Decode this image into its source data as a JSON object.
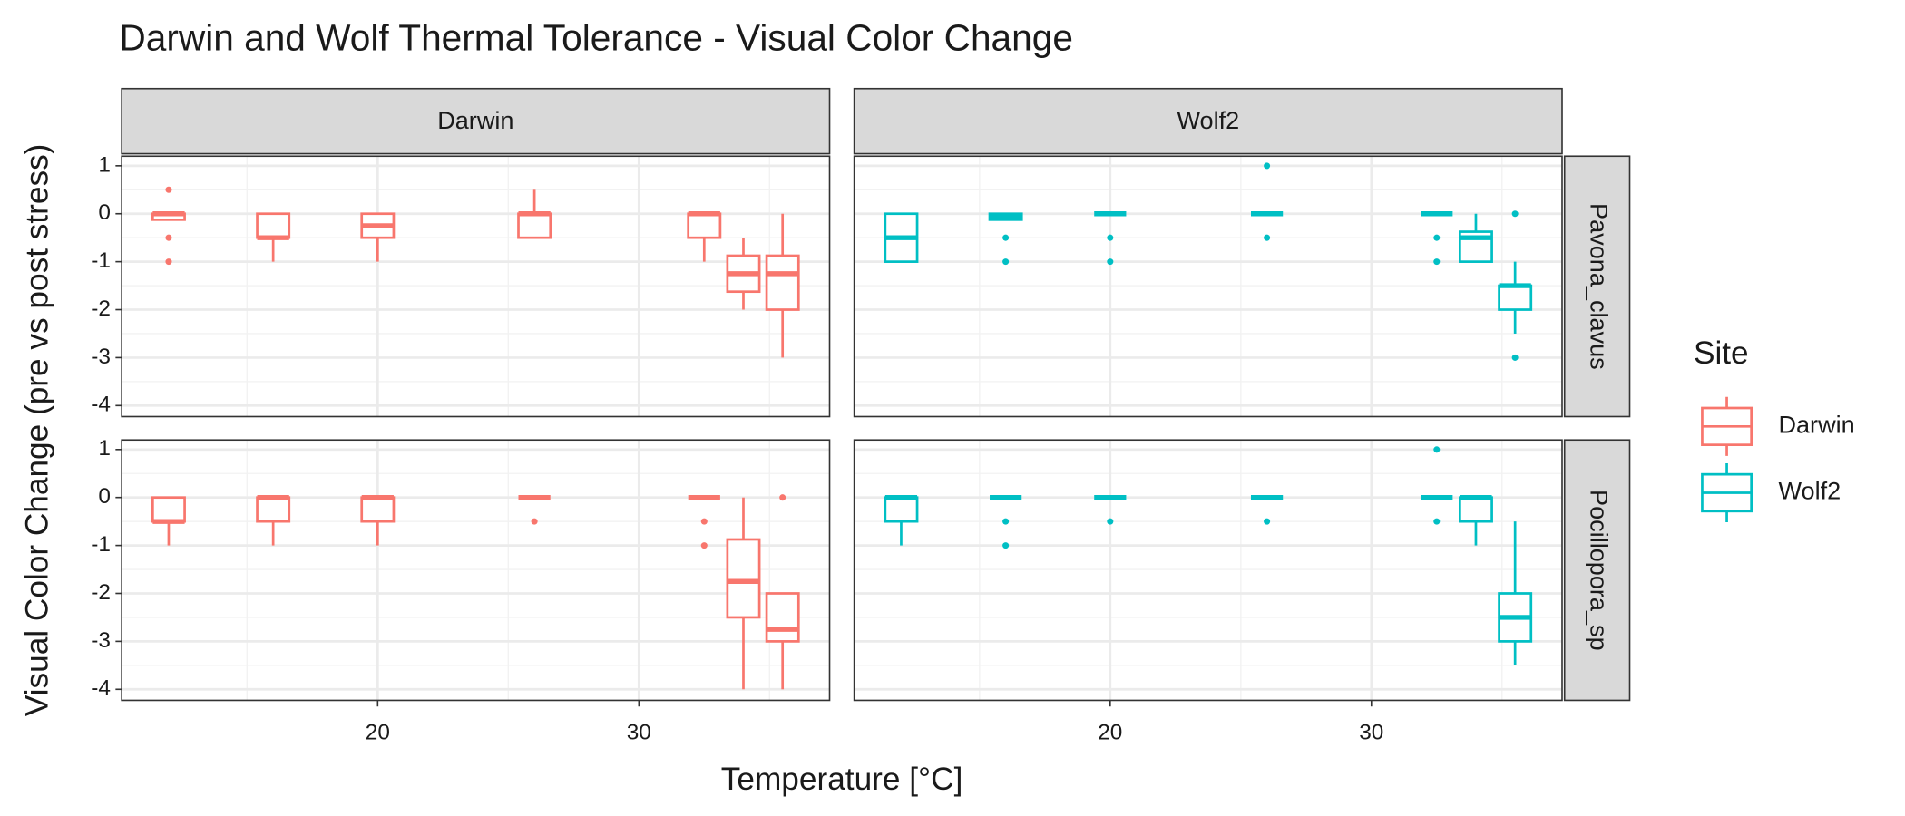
{
  "chart_data": {
    "type": "box",
    "title": "Darwin and Wolf Thermal Tolerance - Visual Color Change",
    "x_label": "Temperature [°C]",
    "y_label": "Visual Color Change (pre vs post stress)",
    "legend_title": "Site",
    "columns": [
      "Darwin",
      "Wolf2"
    ],
    "rows": [
      "Pavona_clavus",
      "Pocillopora_sp"
    ],
    "xlim": [
      10.2,
      37.3
    ],
    "xticks": [
      20,
      30
    ],
    "ylim": [
      -4.23,
      1.2
    ],
    "yticks": [
      -4,
      -3,
      -2,
      -1,
      0,
      1
    ],
    "grid": true,
    "series": [
      {
        "name": "Darwin",
        "color": "#f8766d",
        "panels": [
          [
            {
              "x": 12,
              "whislo": -0.125,
              "q1": -0.125,
              "med": 0,
              "q3": 0,
              "whishi": 0,
              "fliers": [
                0.5,
                -0.5,
                -1
              ]
            },
            {
              "x": 16,
              "whislo": -1,
              "q1": -0.5,
              "med": -0.5,
              "q3": 0,
              "whishi": 0,
              "fliers": []
            },
            {
              "x": 20,
              "whislo": -1,
              "q1": -0.5,
              "med": -0.25,
              "q3": 0,
              "whishi": 0,
              "fliers": []
            },
            {
              "x": 26,
              "whislo": -0.5,
              "q1": -0.5,
              "med": 0,
              "q3": 0,
              "whishi": 0.5,
              "fliers": []
            },
            {
              "x": 32.5,
              "whislo": -1,
              "q1": -0.5,
              "med": 0,
              "q3": 0,
              "whishi": 0,
              "fliers": []
            },
            {
              "x": 34,
              "whislo": -2,
              "q1": -1.625,
              "med": -1.25,
              "q3": -0.875,
              "whishi": -0.5,
              "fliers": []
            },
            {
              "x": 35.5,
              "whislo": -3,
              "q1": -2,
              "med": -1.25,
              "q3": -0.875,
              "whishi": 0,
              "fliers": []
            }
          ],
          [
            {
              "x": 12,
              "whislo": -1,
              "q1": -0.5,
              "med": -0.5,
              "q3": 0,
              "whishi": 0,
              "fliers": []
            },
            {
              "x": 16,
              "whislo": -1,
              "q1": -0.5,
              "med": 0,
              "q3": 0,
              "whishi": 0,
              "fliers": []
            },
            {
              "x": 20,
              "whislo": -1,
              "q1": -0.5,
              "med": 0,
              "q3": 0,
              "whishi": 0,
              "fliers": []
            },
            {
              "x": 26,
              "whislo": 0,
              "q1": 0,
              "med": 0,
              "q3": 0,
              "whishi": 0,
              "fliers": [
                -0.5
              ]
            },
            {
              "x": 32.5,
              "whislo": 0,
              "q1": 0,
              "med": 0,
              "q3": 0,
              "whishi": 0,
              "fliers": [
                -0.5,
                -1
              ]
            },
            {
              "x": 34,
              "whislo": -4,
              "q1": -2.5,
              "med": -1.75,
              "q3": -0.875,
              "whishi": 0,
              "fliers": []
            },
            {
              "x": 35.5,
              "whislo": -4,
              "q1": -3,
              "med": -2.75,
              "q3": -2,
              "whishi": -2,
              "fliers": [
                0
              ]
            }
          ]
        ]
      },
      {
        "name": "Wolf2",
        "color": "#00bfc4",
        "panels": [
          [
            {
              "x": 12,
              "whislo": -1,
              "q1": -1,
              "med": -0.5,
              "q3": 0,
              "whishi": 0,
              "fliers": []
            },
            {
              "x": 16,
              "whislo": -0.125,
              "q1": -0.125,
              "med": -0.05,
              "q3": 0,
              "whishi": 0,
              "fliers": [
                -0.5,
                -1
              ]
            },
            {
              "x": 20,
              "whislo": 0,
              "q1": 0,
              "med": 0,
              "q3": 0,
              "whishi": 0,
              "fliers": [
                -0.5,
                -1
              ]
            },
            {
              "x": 26,
              "whislo": 0,
              "q1": 0,
              "med": 0,
              "q3": 0,
              "whishi": 0,
              "fliers": [
                1,
                -0.5
              ]
            },
            {
              "x": 32.5,
              "whislo": 0,
              "q1": 0,
              "med": 0,
              "q3": 0,
              "whishi": 0,
              "fliers": [
                -0.5,
                -1
              ]
            },
            {
              "x": 34,
              "whislo": -1,
              "q1": -1,
              "med": -0.5,
              "q3": -0.375,
              "whishi": 0,
              "fliers": []
            },
            {
              "x": 35.5,
              "whislo": -2.5,
              "q1": -2,
              "med": -1.5,
              "q3": -1.5,
              "whishi": -1,
              "fliers": [
                0,
                -3
              ]
            }
          ],
          [
            {
              "x": 12,
              "whislo": -1,
              "q1": -0.5,
              "med": 0,
              "q3": 0,
              "whishi": 0,
              "fliers": []
            },
            {
              "x": 16,
              "whislo": 0,
              "q1": 0,
              "med": 0,
              "q3": 0,
              "whishi": 0,
              "fliers": [
                -0.5,
                -1
              ]
            },
            {
              "x": 20,
              "whislo": 0,
              "q1": 0,
              "med": 0,
              "q3": 0,
              "whishi": 0,
              "fliers": [
                -0.5
              ]
            },
            {
              "x": 26,
              "whislo": 0,
              "q1": 0,
              "med": 0,
              "q3": 0,
              "whishi": 0,
              "fliers": [
                -0.5
              ]
            },
            {
              "x": 32.5,
              "whislo": 0,
              "q1": 0,
              "med": 0,
              "q3": 0,
              "whishi": 0,
              "fliers": [
                1,
                -0.5
              ]
            },
            {
              "x": 34,
              "whislo": -1,
              "q1": -0.5,
              "med": 0,
              "q3": 0,
              "whishi": 0,
              "fliers": []
            },
            {
              "x": 35.5,
              "whislo": -3.5,
              "q1": -3,
              "med": -2.5,
              "q3": -2,
              "whishi": -0.5,
              "fliers": []
            }
          ]
        ]
      }
    ]
  }
}
